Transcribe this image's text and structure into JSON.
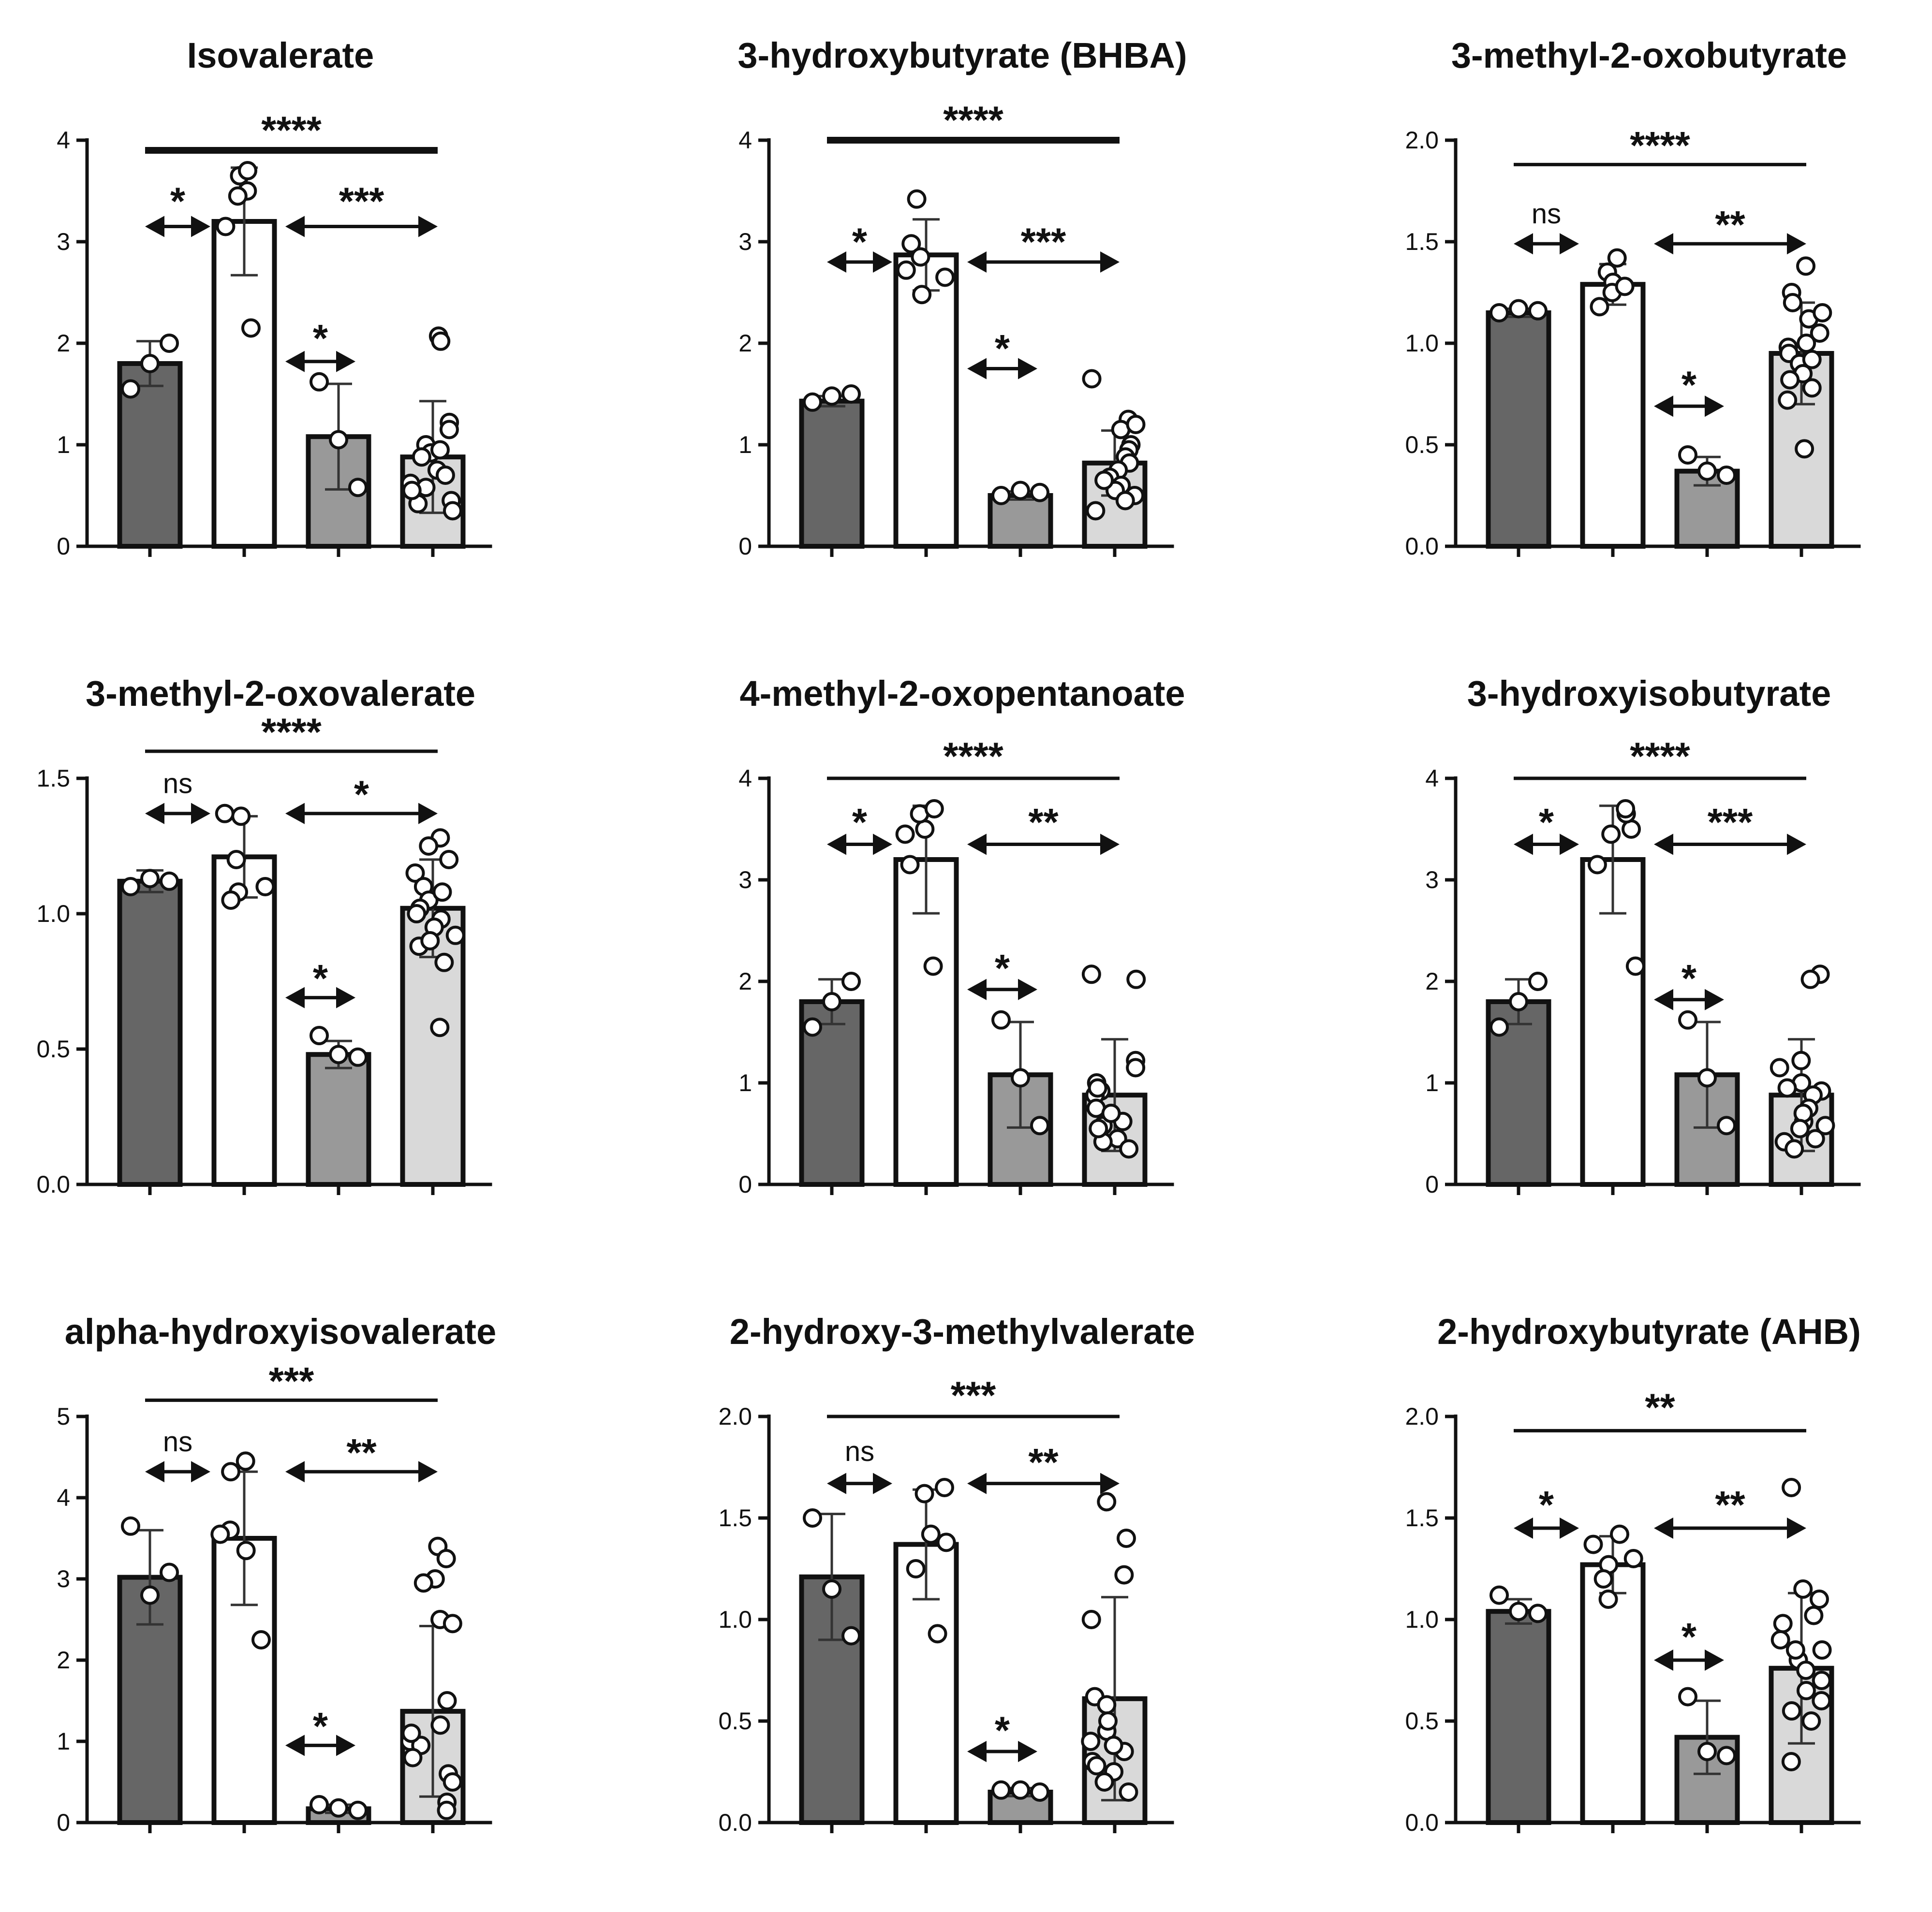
{
  "colors": {
    "dark_gray": "#666666",
    "white": "#ffffff",
    "medium_gray": "#999999",
    "light_gray": "#d9d9d9",
    "ink": "#111111"
  },
  "chart_data": [
    {
      "type": "bar",
      "title": "Isovalerate",
      "ylim": [
        0,
        4
      ],
      "yticks": [
        "0",
        "1",
        "2",
        "3",
        "4"
      ],
      "bars": [
        {
          "fill": "dark_gray",
          "mean": 1.8,
          "sd": 0.22,
          "points": [
            1.55,
            1.8,
            2.0
          ]
        },
        {
          "fill": "white",
          "mean": 3.2,
          "sd": 0.53,
          "points": [
            3.5,
            3.45,
            3.65,
            3.7,
            3.15,
            2.15
          ]
        },
        {
          "fill": "medium_gray",
          "mean": 1.08,
          "sd": 0.52,
          "points": [
            1.62,
            1.05,
            0.58
          ]
        },
        {
          "fill": "light_gray",
          "mean": 0.88,
          "sd": 0.55,
          "points": [
            2.07,
            2.02,
            1.22,
            1.0,
            1.15,
            0.92,
            0.88,
            0.75,
            0.62,
            0.58,
            0.45,
            0.42,
            0.35,
            0.95,
            0.7,
            0.55
          ]
        }
      ],
      "comparisons": [
        {
          "label": "*",
          "kind": "arrow",
          "y": 3.15,
          "label_y": 3.45,
          "from": 0,
          "to": 1
        },
        {
          "label": "***",
          "kind": "arrow",
          "y": 3.15,
          "label_y": 3.45,
          "from": 1,
          "to": 3
        },
        {
          "label": "*",
          "kind": "arrow",
          "y": 1.82,
          "label_y": 2.1,
          "from": 1,
          "to": 2
        },
        {
          "label": "****",
          "kind": "line",
          "y": 3.9,
          "label_y": 4.15,
          "from": 0,
          "to": 3
        }
      ]
    },
    {
      "type": "bar",
      "title": "3-hydroxybutyrate (BHBA)",
      "ylim": [
        0,
        4
      ],
      "yticks": [
        "0",
        "1",
        "2",
        "3",
        "4"
      ],
      "bars": [
        {
          "fill": "dark_gray",
          "mean": 1.43,
          "sd": 0.05,
          "points": [
            1.42,
            1.48,
            1.5
          ]
        },
        {
          "fill": "white",
          "mean": 2.87,
          "sd": 0.35,
          "points": [
            3.42,
            2.98,
            2.72,
            2.85,
            2.65,
            2.48
          ]
        },
        {
          "fill": "medium_gray",
          "mean": 0.5,
          "sd": 0.04,
          "points": [
            0.5,
            0.55,
            0.53
          ]
        },
        {
          "fill": "light_gray",
          "mean": 0.82,
          "sd": 0.32,
          "points": [
            1.65,
            1.25,
            1.15,
            1.2,
            1.0,
            0.95,
            0.88,
            0.82,
            0.75,
            0.68,
            0.6,
            0.55,
            0.5,
            0.45,
            0.35,
            0.65
          ]
        }
      ],
      "comparisons": [
        {
          "label": "*",
          "kind": "arrow",
          "y": 2.8,
          "label_y": 3.05,
          "from": 0,
          "to": 1
        },
        {
          "label": "***",
          "kind": "arrow",
          "y": 2.8,
          "label_y": 3.05,
          "from": 1,
          "to": 3
        },
        {
          "label": "*",
          "kind": "arrow",
          "y": 1.75,
          "label_y": 2.0,
          "from": 1,
          "to": 2
        },
        {
          "label": "****",
          "kind": "line",
          "y": 4.0,
          "label_y": 4.25,
          "from": 0,
          "to": 3
        }
      ]
    },
    {
      "type": "bar",
      "title": "3-methyl-2-oxobutyrate",
      "ylim": [
        0,
        2
      ],
      "yticks": [
        "0.0",
        "0.5",
        "1.0",
        "1.5",
        "2.0"
      ],
      "bars": [
        {
          "fill": "dark_gray",
          "mean": 1.15,
          "sd": 0.02,
          "points": [
            1.15,
            1.17,
            1.16
          ]
        },
        {
          "fill": "white",
          "mean": 1.29,
          "sd": 0.1,
          "points": [
            1.42,
            1.35,
            1.3,
            1.25,
            1.28,
            1.18
          ]
        },
        {
          "fill": "medium_gray",
          "mean": 0.37,
          "sd": 0.07,
          "points": [
            0.45,
            0.37,
            0.35
          ]
        },
        {
          "fill": "light_gray",
          "mean": 0.95,
          "sd": 0.25,
          "points": [
            1.38,
            1.25,
            1.2,
            1.12,
            1.05,
            1.0,
            0.98,
            0.95,
            0.9,
            0.85,
            0.82,
            0.78,
            0.72,
            0.48,
            1.15,
            0.92
          ]
        }
      ],
      "comparisons": [
        {
          "label": "ns",
          "kind": "arrow",
          "y": 1.49,
          "label_y": 1.61,
          "from": 0,
          "to": 1
        },
        {
          "label": "**",
          "kind": "arrow",
          "y": 1.49,
          "label_y": 1.61,
          "from": 1,
          "to": 3
        },
        {
          "label": "*",
          "kind": "arrow",
          "y": 0.69,
          "label_y": 0.82,
          "from": 1,
          "to": 2
        },
        {
          "label": "****",
          "kind": "line",
          "y": 1.88,
          "label_y": 2.0,
          "from": 0,
          "to": 3
        }
      ]
    },
    {
      "type": "bar",
      "title": "3-methyl-2-oxovalerate",
      "ylim": [
        0,
        1.5
      ],
      "yticks": [
        "0.0",
        "0.5",
        "1.0",
        "1.5"
      ],
      "bars": [
        {
          "fill": "dark_gray",
          "mean": 1.12,
          "sd": 0.04,
          "points": [
            1.1,
            1.13,
            1.12
          ]
        },
        {
          "fill": "white",
          "mean": 1.21,
          "sd": 0.15,
          "points": [
            1.36,
            1.37,
            1.2,
            1.08,
            1.05,
            1.1
          ]
        },
        {
          "fill": "medium_gray",
          "mean": 0.48,
          "sd": 0.05,
          "points": [
            0.55,
            0.48,
            0.47
          ]
        },
        {
          "fill": "light_gray",
          "mean": 1.02,
          "sd": 0.18,
          "points": [
            1.28,
            1.25,
            1.2,
            1.15,
            1.1,
            1.05,
            1.02,
            1.0,
            0.98,
            0.95,
            0.92,
            0.88,
            0.82,
            0.58,
            1.08,
            0.9
          ]
        }
      ],
      "comparisons": [
        {
          "label": "ns",
          "kind": "arrow",
          "y": 1.37,
          "label_y": 1.46,
          "from": 0,
          "to": 1
        },
        {
          "label": "*",
          "kind": "arrow",
          "y": 1.37,
          "label_y": 1.46,
          "from": 1,
          "to": 3
        },
        {
          "label": "*",
          "kind": "arrow",
          "y": 0.69,
          "label_y": 0.78,
          "from": 1,
          "to": 2
        },
        {
          "label": "****",
          "kind": "line",
          "y": 1.6,
          "label_y": 1.69,
          "from": 0,
          "to": 3
        }
      ]
    },
    {
      "type": "bar",
      "title": "4-methyl-2-oxopentanoate",
      "ylim": [
        0,
        4
      ],
      "yticks": [
        "0",
        "1",
        "2",
        "3",
        "4"
      ],
      "bars": [
        {
          "fill": "dark_gray",
          "mean": 1.8,
          "sd": 0.22,
          "points": [
            1.55,
            1.8,
            2.0
          ]
        },
        {
          "fill": "white",
          "mean": 3.2,
          "sd": 0.53,
          "points": [
            3.5,
            3.45,
            3.65,
            3.7,
            3.15,
            2.15
          ]
        },
        {
          "fill": "medium_gray",
          "mean": 1.08,
          "sd": 0.52,
          "points": [
            1.62,
            1.05,
            0.58
          ]
        },
        {
          "fill": "light_gray",
          "mean": 0.88,
          "sd": 0.55,
          "points": [
            2.07,
            2.02,
            1.22,
            1.0,
            1.15,
            0.92,
            0.88,
            0.75,
            0.62,
            0.58,
            0.45,
            0.42,
            0.35,
            0.95,
            0.7,
            0.55
          ]
        }
      ],
      "comparisons": [
        {
          "label": "*",
          "kind": "arrow",
          "y": 3.35,
          "label_y": 3.62,
          "from": 0,
          "to": 1
        },
        {
          "label": "**",
          "kind": "arrow",
          "y": 3.35,
          "label_y": 3.62,
          "from": 1,
          "to": 3
        },
        {
          "label": "*",
          "kind": "arrow",
          "y": 1.92,
          "label_y": 2.18,
          "from": 1,
          "to": 2
        },
        {
          "label": "****",
          "kind": "line",
          "y": 4.0,
          "label_y": 4.27,
          "from": 0,
          "to": 3
        }
      ]
    },
    {
      "type": "bar",
      "title": "3-hydroxyisobutyrate",
      "ylim": [
        0,
        4
      ],
      "yticks": [
        "0",
        "1",
        "2",
        "3",
        "4"
      ],
      "bars": [
        {
          "fill": "dark_gray",
          "mean": 1.8,
          "sd": 0.22,
          "points": [
            1.55,
            1.8,
            2.0
          ]
        },
        {
          "fill": "white",
          "mean": 3.2,
          "sd": 0.53,
          "points": [
            3.5,
            3.45,
            3.65,
            3.7,
            3.15,
            2.15
          ]
        },
        {
          "fill": "medium_gray",
          "mean": 1.08,
          "sd": 0.52,
          "points": [
            1.62,
            1.05,
            0.58
          ]
        },
        {
          "fill": "light_gray",
          "mean": 0.88,
          "sd": 0.55,
          "points": [
            2.07,
            2.02,
            1.22,
            1.0,
            1.15,
            0.92,
            0.88,
            0.75,
            0.62,
            0.58,
            0.45,
            0.42,
            0.35,
            0.95,
            0.7,
            0.55
          ]
        }
      ],
      "comparisons": [
        {
          "label": "*",
          "kind": "arrow",
          "y": 3.35,
          "label_y": 3.62,
          "from": 0,
          "to": 1
        },
        {
          "label": "***",
          "kind": "arrow",
          "y": 3.35,
          "label_y": 3.62,
          "from": 1,
          "to": 3
        },
        {
          "label": "*",
          "kind": "arrow",
          "y": 1.82,
          "label_y": 2.08,
          "from": 1,
          "to": 2
        },
        {
          "label": "****",
          "kind": "line",
          "y": 4.0,
          "label_y": 4.27,
          "from": 0,
          "to": 3
        }
      ]
    },
    {
      "type": "bar",
      "title": "alpha-hydroxyisovalerate",
      "ylim": [
        0,
        5
      ],
      "yticks": [
        "0",
        "1",
        "2",
        "3",
        "4",
        "5"
      ],
      "bars": [
        {
          "fill": "dark_gray",
          "mean": 3.02,
          "sd": 0.58,
          "points": [
            3.65,
            2.8,
            3.08
          ]
        },
        {
          "fill": "white",
          "mean": 3.5,
          "sd": 0.82,
          "points": [
            4.32,
            4.45,
            3.6,
            3.55,
            3.35,
            2.25
          ]
        },
        {
          "fill": "medium_gray",
          "mean": 0.17,
          "sd": 0.05,
          "points": [
            0.22,
            0.18,
            0.15
          ]
        },
        {
          "fill": "light_gray",
          "mean": 1.37,
          "sd": 1.05,
          "points": [
            3.4,
            3.25,
            3.0,
            2.95,
            2.5,
            2.45,
            1.5,
            1.2,
            1.0,
            0.95,
            0.8,
            0.6,
            0.5,
            0.25,
            0.15,
            1.1
          ]
        }
      ],
      "comparisons": [
        {
          "label": "ns",
          "kind": "arrow",
          "y": 4.32,
          "label_y": 4.62,
          "from": 0,
          "to": 1
        },
        {
          "label": "**",
          "kind": "arrow",
          "y": 4.32,
          "label_y": 4.62,
          "from": 1,
          "to": 3
        },
        {
          "label": "*",
          "kind": "arrow",
          "y": 0.95,
          "label_y": 1.25,
          "from": 1,
          "to": 2
        },
        {
          "label": "***",
          "kind": "line",
          "y": 5.2,
          "label_y": 5.5,
          "from": 0,
          "to": 3
        }
      ]
    },
    {
      "type": "bar",
      "title": "2-hydroxy-3-methylvalerate",
      "ylim": [
        0,
        2
      ],
      "yticks": [
        "0.0",
        "0.5",
        "1.0",
        "1.5",
        "2.0"
      ],
      "bars": [
        {
          "fill": "dark_gray",
          "mean": 1.21,
          "sd": 0.31,
          "points": [
            1.5,
            1.15,
            0.92
          ]
        },
        {
          "fill": "white",
          "mean": 1.37,
          "sd": 0.27,
          "points": [
            1.62,
            1.65,
            1.42,
            1.38,
            1.25,
            0.93
          ]
        },
        {
          "fill": "medium_gray",
          "mean": 0.15,
          "sd": 0.02,
          "points": [
            0.16,
            0.16,
            0.15
          ]
        },
        {
          "fill": "light_gray",
          "mean": 0.61,
          "sd": 0.5,
          "points": [
            1.58,
            1.4,
            1.22,
            1.0,
            0.62,
            0.58,
            0.45,
            0.4,
            0.35,
            0.3,
            0.28,
            0.25,
            0.2,
            0.15,
            0.5,
            0.38
          ]
        }
      ],
      "comparisons": [
        {
          "label": "ns",
          "kind": "arrow",
          "y": 1.67,
          "label_y": 1.8,
          "from": 0,
          "to": 1
        },
        {
          "label": "**",
          "kind": "arrow",
          "y": 1.67,
          "label_y": 1.8,
          "from": 1,
          "to": 3
        },
        {
          "label": "*",
          "kind": "arrow",
          "y": 0.35,
          "label_y": 0.48,
          "from": 1,
          "to": 2
        },
        {
          "label": "***",
          "kind": "line",
          "y": 2.0,
          "label_y": 2.13,
          "from": 0,
          "to": 3
        }
      ]
    },
    {
      "type": "bar",
      "title": "2-hydroxybutyrate (AHB)",
      "ylim": [
        0,
        2
      ],
      "yticks": [
        "0.0",
        "0.5",
        "1.0",
        "1.5",
        "2.0"
      ],
      "bars": [
        {
          "fill": "dark_gray",
          "mean": 1.04,
          "sd": 0.06,
          "points": [
            1.12,
            1.04,
            1.03
          ]
        },
        {
          "fill": "white",
          "mean": 1.27,
          "sd": 0.14,
          "points": [
            1.42,
            1.37,
            1.3,
            1.27,
            1.2,
            1.1
          ]
        },
        {
          "fill": "medium_gray",
          "mean": 0.42,
          "sd": 0.18,
          "points": [
            0.62,
            0.35,
            0.33
          ]
        },
        {
          "fill": "light_gray",
          "mean": 0.76,
          "sd": 0.37,
          "points": [
            1.65,
            1.15,
            1.1,
            1.02,
            0.98,
            0.9,
            0.85,
            0.8,
            0.75,
            0.7,
            0.6,
            0.55,
            0.5,
            0.3,
            0.85,
            0.65
          ]
        }
      ],
      "comparisons": [
        {
          "label": "*",
          "kind": "arrow",
          "y": 1.45,
          "label_y": 1.59,
          "from": 0,
          "to": 1
        },
        {
          "label": "**",
          "kind": "arrow",
          "y": 1.45,
          "label_y": 1.59,
          "from": 1,
          "to": 3
        },
        {
          "label": "*",
          "kind": "arrow",
          "y": 0.8,
          "label_y": 0.94,
          "from": 1,
          "to": 2
        },
        {
          "label": "**",
          "kind": "line",
          "y": 1.93,
          "label_y": 2.07,
          "from": 0,
          "to": 3
        }
      ]
    }
  ]
}
